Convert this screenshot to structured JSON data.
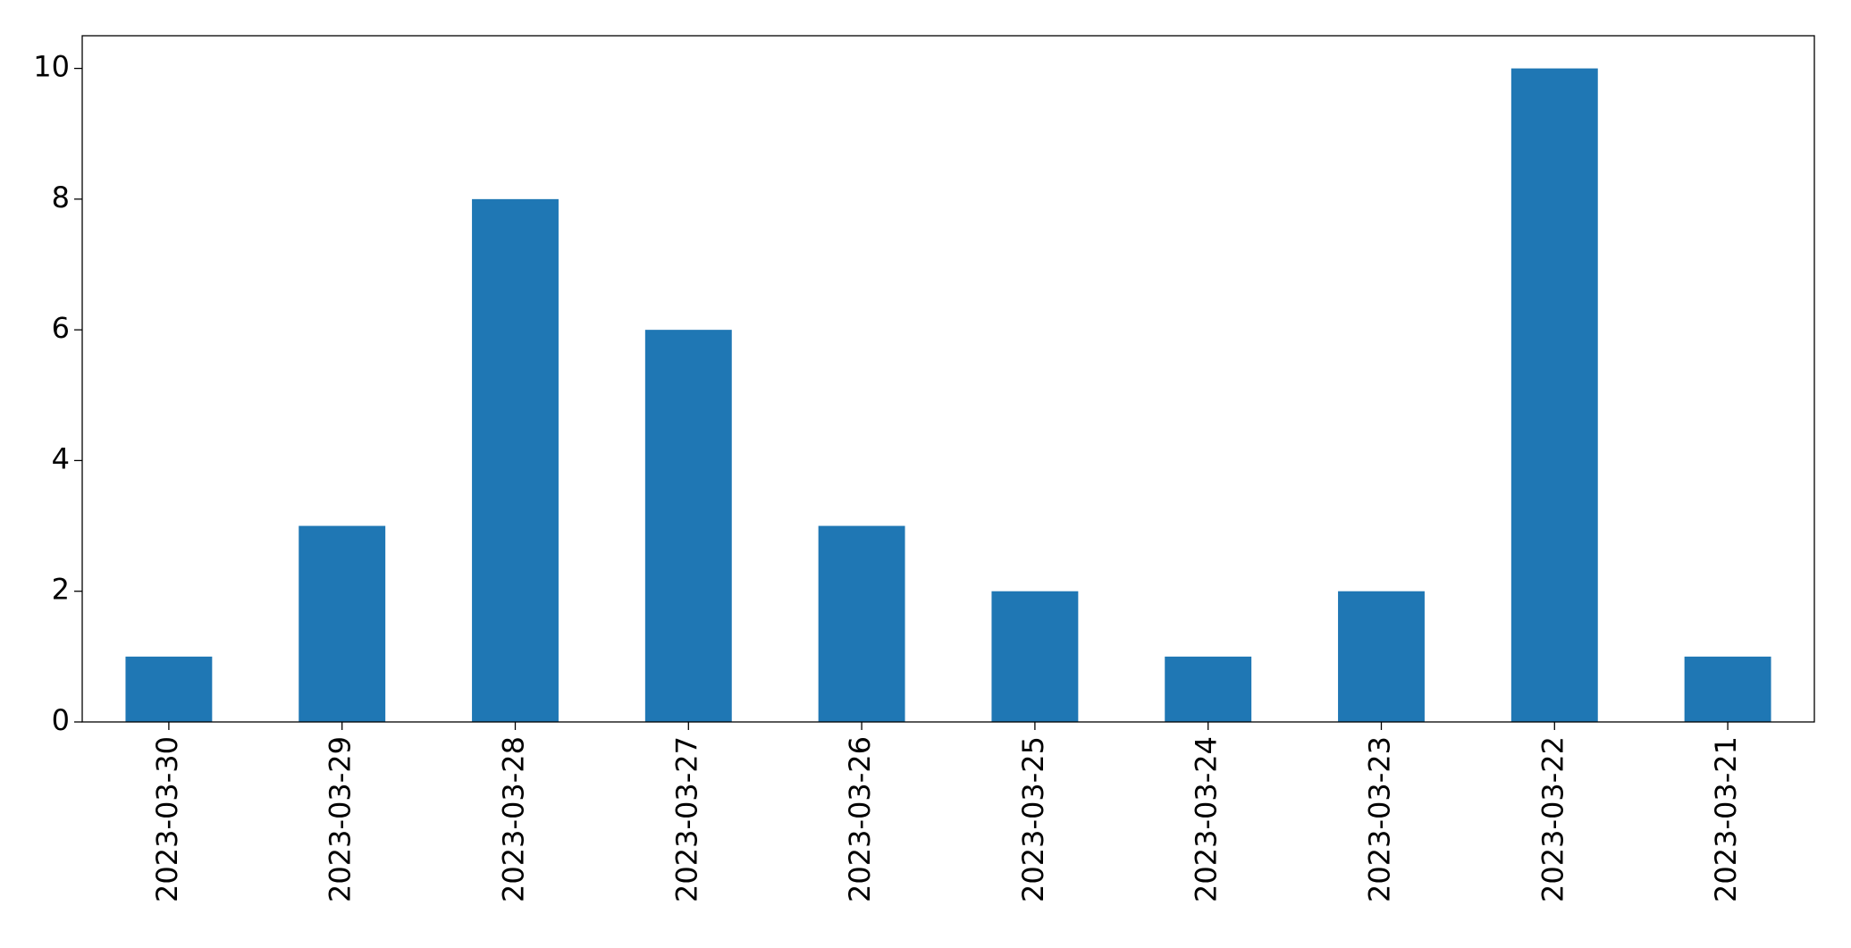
{
  "chart_data": {
    "type": "bar",
    "categories": [
      "2023-03-30",
      "2023-03-29",
      "2023-03-28",
      "2023-03-27",
      "2023-03-26",
      "2023-03-25",
      "2023-03-24",
      "2023-03-23",
      "2023-03-22",
      "2023-03-21"
    ],
    "values": [
      1,
      3,
      8,
      6,
      3,
      2,
      1,
      2,
      10,
      1
    ],
    "color": "#1f77b4",
    "ylim": [
      0,
      10.5
    ],
    "yticks": [
      0,
      2,
      4,
      6,
      8,
      10
    ],
    "grid": false
  }
}
